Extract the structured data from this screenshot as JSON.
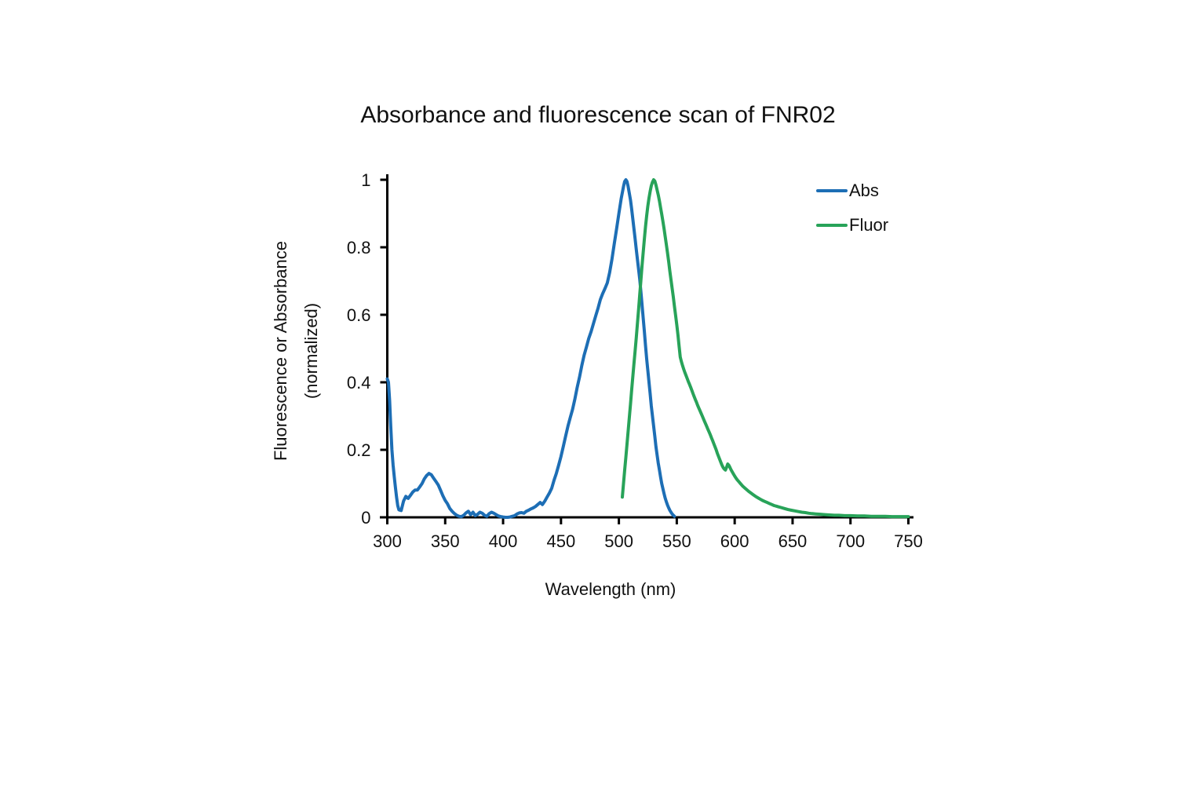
{
  "title": "Absorbance and fluorescence scan of FNR02",
  "axes": {
    "x": {
      "label": "Wavelength (nm)",
      "min": 300,
      "max": 750,
      "ticks": [
        300,
        350,
        400,
        450,
        500,
        550,
        600,
        650,
        700,
        750
      ]
    },
    "y": {
      "label_line1": "Fluorescence or Absorbance",
      "label_line2": "(normalized)",
      "min": 0,
      "max": 1,
      "ticks": [
        {
          "label": "1",
          "value": 1
        },
        {
          "label": "0.8",
          "value": 0.8
        },
        {
          "label": "0.6",
          "value": 0.6
        },
        {
          "label": "0.4",
          "value": 0.4
        },
        {
          "label": "0.2",
          "value": 0.2
        },
        {
          "label": "0",
          "value": 0
        }
      ]
    }
  },
  "legend": [
    {
      "label": "Abs",
      "color": "#1d6eb5"
    },
    {
      "label": "Fluor",
      "color": "#28a359"
    }
  ],
  "colors": {
    "abs": "#1d6eb5",
    "fluor": "#28a359",
    "axis": "#000000",
    "text": "#111111"
  },
  "chart_data": {
    "type": "line",
    "title": "Absorbance and fluorescence scan of FNR02",
    "xlabel": "Wavelength (nm)",
    "ylabel": "Fluorescence or Absorbance (normalized)",
    "xlim": [
      300,
      750
    ],
    "ylim": [
      0,
      1
    ],
    "grid": false,
    "legend_position": "top-right",
    "series": [
      {
        "name": "Abs",
        "color": "#1d6eb5",
        "points": [
          [
            300,
            0.41
          ],
          [
            301,
            0.4
          ],
          [
            302,
            0.345
          ],
          [
            303,
            0.27
          ],
          [
            304,
            0.2
          ],
          [
            305,
            0.155
          ],
          [
            306,
            0.12
          ],
          [
            307,
            0.09
          ],
          [
            308,
            0.06
          ],
          [
            309,
            0.035
          ],
          [
            310,
            0.022
          ],
          [
            312,
            0.02
          ],
          [
            314,
            0.048
          ],
          [
            316,
            0.062
          ],
          [
            318,
            0.056
          ],
          [
            320,
            0.065
          ],
          [
            322,
            0.075
          ],
          [
            324,
            0.081
          ],
          [
            326,
            0.081
          ],
          [
            328,
            0.09
          ],
          [
            330,
            0.1
          ],
          [
            332,
            0.114
          ],
          [
            334,
            0.124
          ],
          [
            336,
            0.13
          ],
          [
            338,
            0.126
          ],
          [
            340,
            0.116
          ],
          [
            342,
            0.106
          ],
          [
            344,
            0.096
          ],
          [
            346,
            0.08
          ],
          [
            348,
            0.064
          ],
          [
            350,
            0.05
          ],
          [
            352,
            0.04
          ],
          [
            354,
            0.026
          ],
          [
            356,
            0.018
          ],
          [
            358,
            0.011
          ],
          [
            360,
            0.006
          ],
          [
            362,
            0.003
          ],
          [
            364,
            0.002
          ],
          [
            366,
            0.006
          ],
          [
            368,
            0.013
          ],
          [
            370,
            0.018
          ],
          [
            372,
            0.008
          ],
          [
            374,
            0.015
          ],
          [
            376,
            0.005
          ],
          [
            378,
            0.009
          ],
          [
            380,
            0.015
          ],
          [
            382,
            0.012
          ],
          [
            384,
            0.006
          ],
          [
            386,
            0.003
          ],
          [
            388,
            0.011
          ],
          [
            390,
            0.015
          ],
          [
            392,
            0.012
          ],
          [
            394,
            0.008
          ],
          [
            396,
            0.004
          ],
          [
            398,
            0.002
          ],
          [
            400,
            0.001
          ],
          [
            402,
            0
          ],
          [
            404,
            0
          ],
          [
            406,
            0.001
          ],
          [
            408,
            0.003
          ],
          [
            410,
            0.005
          ],
          [
            412,
            0.01
          ],
          [
            414,
            0.013
          ],
          [
            416,
            0.014
          ],
          [
            418,
            0.012
          ],
          [
            420,
            0.018
          ],
          [
            422,
            0.021
          ],
          [
            424,
            0.025
          ],
          [
            426,
            0.028
          ],
          [
            428,
            0.032
          ],
          [
            430,
            0.038
          ],
          [
            432,
            0.044
          ],
          [
            434,
            0.038
          ],
          [
            436,
            0.048
          ],
          [
            438,
            0.06
          ],
          [
            440,
            0.072
          ],
          [
            442,
            0.086
          ],
          [
            444,
            0.11
          ],
          [
            446,
            0.13
          ],
          [
            448,
            0.155
          ],
          [
            450,
            0.18
          ],
          [
            452,
            0.21
          ],
          [
            454,
            0.24
          ],
          [
            456,
            0.27
          ],
          [
            458,
            0.295
          ],
          [
            460,
            0.32
          ],
          [
            462,
            0.35
          ],
          [
            464,
            0.385
          ],
          [
            466,
            0.415
          ],
          [
            468,
            0.45
          ],
          [
            470,
            0.48
          ],
          [
            472,
            0.505
          ],
          [
            474,
            0.53
          ],
          [
            476,
            0.55
          ],
          [
            478,
            0.573
          ],
          [
            480,
            0.597
          ],
          [
            482,
            0.62
          ],
          [
            484,
            0.645
          ],
          [
            486,
            0.663
          ],
          [
            488,
            0.678
          ],
          [
            490,
            0.695
          ],
          [
            492,
            0.725
          ],
          [
            494,
            0.765
          ],
          [
            496,
            0.81
          ],
          [
            498,
            0.855
          ],
          [
            500,
            0.9
          ],
          [
            502,
            0.945
          ],
          [
            504,
            0.98
          ],
          [
            505,
            0.995
          ],
          [
            506,
            1
          ],
          [
            507,
            0.995
          ],
          [
            508,
            0.98
          ],
          [
            509,
            0.96
          ],
          [
            510,
            0.94
          ],
          [
            511,
            0.915
          ],
          [
            512,
            0.885
          ],
          [
            513,
            0.855
          ],
          [
            514,
            0.825
          ],
          [
            515,
            0.795
          ],
          [
            516,
            0.765
          ],
          [
            517,
            0.735
          ],
          [
            518,
            0.705
          ],
          [
            519,
            0.67
          ],
          [
            520,
            0.63
          ],
          [
            521,
            0.59
          ],
          [
            522,
            0.55
          ],
          [
            523,
            0.51
          ],
          [
            524,
            0.47
          ],
          [
            525,
            0.435
          ],
          [
            526,
            0.4
          ],
          [
            527,
            0.365
          ],
          [
            528,
            0.33
          ],
          [
            529,
            0.3
          ],
          [
            530,
            0.27
          ],
          [
            531,
            0.24
          ],
          [
            532,
            0.21
          ],
          [
            533,
            0.185
          ],
          [
            534,
            0.16
          ],
          [
            535,
            0.14
          ],
          [
            536,
            0.12
          ],
          [
            537,
            0.1
          ],
          [
            538,
            0.085
          ],
          [
            539,
            0.07
          ],
          [
            540,
            0.057
          ],
          [
            541,
            0.046
          ],
          [
            542,
            0.036
          ],
          [
            543,
            0.028
          ],
          [
            544,
            0.021
          ],
          [
            545,
            0.015
          ],
          [
            546,
            0.01
          ],
          [
            547,
            0.006
          ],
          [
            548,
            0.003
          ]
        ]
      },
      {
        "name": "Fluor",
        "color": "#28a359",
        "points": [
          [
            503,
            0.06
          ],
          [
            504,
            0.1
          ],
          [
            505,
            0.14
          ],
          [
            506,
            0.178
          ],
          [
            507,
            0.215
          ],
          [
            508,
            0.255
          ],
          [
            509,
            0.295
          ],
          [
            510,
            0.335
          ],
          [
            511,
            0.375
          ],
          [
            512,
            0.415
          ],
          [
            513,
            0.455
          ],
          [
            514,
            0.493
          ],
          [
            515,
            0.53
          ],
          [
            516,
            0.573
          ],
          [
            517,
            0.615
          ],
          [
            518,
            0.66
          ],
          [
            519,
            0.7
          ],
          [
            520,
            0.745
          ],
          [
            521,
            0.785
          ],
          [
            522,
            0.825
          ],
          [
            523,
            0.86
          ],
          [
            524,
            0.893
          ],
          [
            525,
            0.922
          ],
          [
            526,
            0.946
          ],
          [
            527,
            0.966
          ],
          [
            528,
            0.982
          ],
          [
            529,
            0.993
          ],
          [
            530,
            1
          ],
          [
            531,
            0.996
          ],
          [
            532,
            0.985
          ],
          [
            533,
            0.97
          ],
          [
            534,
            0.955
          ],
          [
            535,
            0.937
          ],
          [
            536,
            0.918
          ],
          [
            537,
            0.898
          ],
          [
            538,
            0.877
          ],
          [
            539,
            0.855
          ],
          [
            540,
            0.832
          ],
          [
            541,
            0.808
          ],
          [
            542,
            0.783
          ],
          [
            543,
            0.757
          ],
          [
            544,
            0.73
          ],
          [
            545,
            0.704
          ],
          [
            546,
            0.678
          ],
          [
            547,
            0.652
          ],
          [
            548,
            0.625
          ],
          [
            549,
            0.598
          ],
          [
            550,
            0.57
          ],
          [
            551,
            0.54
          ],
          [
            552,
            0.508
          ],
          [
            553,
            0.475
          ],
          [
            554,
            0.461
          ],
          [
            555,
            0.449
          ],
          [
            556,
            0.439
          ],
          [
            557,
            0.429
          ],
          [
            558,
            0.42
          ],
          [
            559,
            0.411
          ],
          [
            560,
            0.402
          ],
          [
            561,
            0.394
          ],
          [
            562,
            0.385
          ],
          [
            563,
            0.376
          ],
          [
            564,
            0.367
          ],
          [
            565,
            0.358
          ],
          [
            566,
            0.349
          ],
          [
            567,
            0.341
          ],
          [
            568,
            0.332
          ],
          [
            569,
            0.324
          ],
          [
            570,
            0.316
          ],
          [
            571,
            0.308
          ],
          [
            572,
            0.3
          ],
          [
            573,
            0.292
          ],
          [
            574,
            0.284
          ],
          [
            575,
            0.276
          ],
          [
            576,
            0.268
          ],
          [
            577,
            0.26
          ],
          [
            578,
            0.252
          ],
          [
            579,
            0.244
          ],
          [
            580,
            0.235
          ],
          [
            581,
            0.227
          ],
          [
            582,
            0.218
          ],
          [
            583,
            0.209
          ],
          [
            584,
            0.2
          ],
          [
            585,
            0.19
          ],
          [
            586,
            0.181
          ],
          [
            587,
            0.172
          ],
          [
            588,
            0.163
          ],
          [
            589,
            0.155
          ],
          [
            590,
            0.148
          ],
          [
            591,
            0.143
          ],
          [
            592,
            0.14
          ],
          [
            593,
            0.148
          ],
          [
            594,
            0.158
          ],
          [
            595,
            0.154
          ],
          [
            596,
            0.147
          ],
          [
            597,
            0.14
          ],
          [
            598,
            0.134
          ],
          [
            599,
            0.128
          ],
          [
            600,
            0.122
          ],
          [
            601,
            0.117
          ],
          [
            602,
            0.112
          ],
          [
            603,
            0.108
          ],
          [
            604,
            0.104
          ],
          [
            605,
            0.1
          ],
          [
            606,
            0.096
          ],
          [
            607,
            0.092
          ],
          [
            608,
            0.089
          ],
          [
            609,
            0.086
          ],
          [
            610,
            0.083
          ],
          [
            612,
            0.077
          ],
          [
            614,
            0.072
          ],
          [
            616,
            0.067
          ],
          [
            618,
            0.062
          ],
          [
            620,
            0.058
          ],
          [
            622,
            0.054
          ],
          [
            624,
            0.05
          ],
          [
            626,
            0.047
          ],
          [
            628,
            0.044
          ],
          [
            630,
            0.041
          ],
          [
            632,
            0.038
          ],
          [
            634,
            0.035
          ],
          [
            636,
            0.033
          ],
          [
            638,
            0.031
          ],
          [
            640,
            0.029
          ],
          [
            643,
            0.026
          ],
          [
            646,
            0.023
          ],
          [
            649,
            0.021
          ],
          [
            652,
            0.019
          ],
          [
            655,
            0.017
          ],
          [
            658,
            0.015
          ],
          [
            661,
            0.014
          ],
          [
            664,
            0.012
          ],
          [
            667,
            0.011
          ],
          [
            670,
            0.01
          ],
          [
            674,
            0.009
          ],
          [
            678,
            0.008
          ],
          [
            682,
            0.007
          ],
          [
            686,
            0.006
          ],
          [
            690,
            0.006
          ],
          [
            695,
            0.005
          ],
          [
            700,
            0.005
          ],
          [
            706,
            0.004
          ],
          [
            712,
            0.004
          ],
          [
            718,
            0.003
          ],
          [
            724,
            0.003
          ],
          [
            730,
            0.003
          ],
          [
            736,
            0.002
          ],
          [
            742,
            0.002
          ],
          [
            750,
            0.002
          ]
        ]
      }
    ]
  }
}
